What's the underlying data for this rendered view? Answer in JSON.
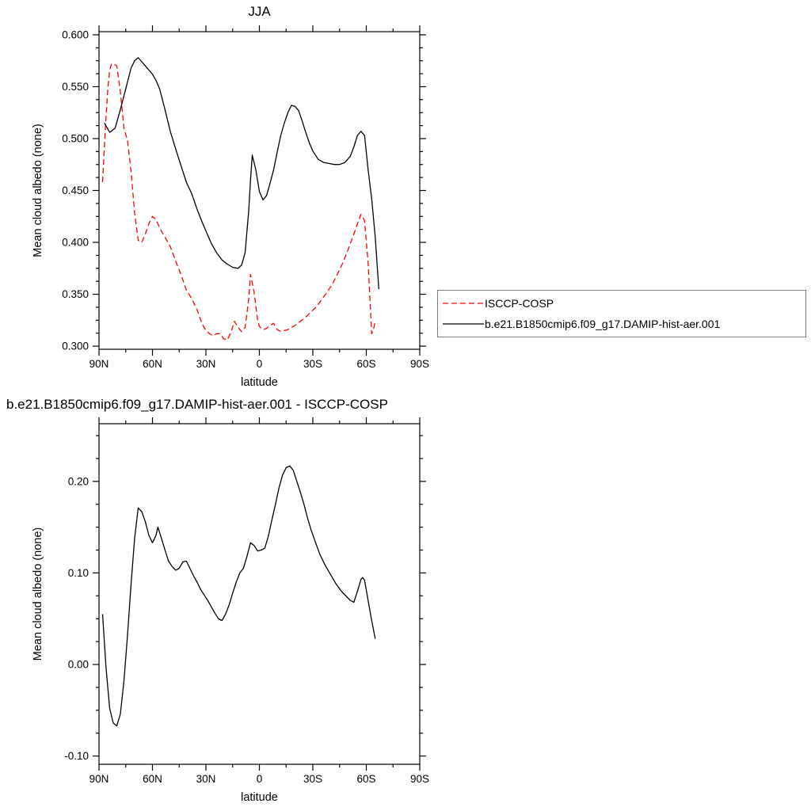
{
  "chart_data": [
    {
      "type": "line",
      "title": "JJA",
      "xlabel": "latitude",
      "ylabel": "Mean cloud albedo (none)",
      "xlim": [
        90,
        -90
      ],
      "ylim": [
        0.297,
        0.603
      ],
      "grid": false,
      "legend_position": "outside-right-bottom",
      "xticks": [
        {
          "v": 90,
          "label": "90N"
        },
        {
          "v": 60,
          "label": "60N"
        },
        {
          "v": 30,
          "label": "30N"
        },
        {
          "v": 0,
          "label": "0"
        },
        {
          "v": -30,
          "label": "30S"
        },
        {
          "v": -60,
          "label": "60S"
        },
        {
          "v": -90,
          "label": "90S"
        }
      ],
      "yticks": [
        {
          "v": 0.3,
          "label": "0.300"
        },
        {
          "v": 0.35,
          "label": "0.350"
        },
        {
          "v": 0.4,
          "label": "0.400"
        },
        {
          "v": 0.45,
          "label": "0.450"
        },
        {
          "v": 0.5,
          "label": "0.500"
        },
        {
          "v": 0.55,
          "label": "0.550"
        },
        {
          "v": 0.6,
          "label": "0.600"
        }
      ],
      "x_minor_step": 15,
      "y_minor_step": 0.0125,
      "series": [
        {
          "name": "ISCCP-COSP",
          "color": "#ff0000",
          "dash": "7,4",
          "x": [
            88,
            87,
            86,
            85,
            84,
            83,
            82,
            80,
            78,
            76,
            74,
            72,
            70,
            68,
            66,
            64,
            62,
            60,
            58,
            56,
            53,
            50,
            47,
            44,
            41,
            38,
            35,
            32,
            30,
            28,
            26,
            24,
            22,
            20,
            18,
            16,
            14,
            12,
            10,
            8,
            6,
            5,
            3,
            1,
            0,
            -2,
            -4,
            -6,
            -8,
            -10,
            -12,
            -14,
            -16,
            -18,
            -20,
            -23,
            -26,
            -29,
            -32,
            -35,
            -38,
            -41,
            -44,
            -47,
            -50,
            -53,
            -55,
            -57,
            -59,
            -61,
            -63,
            -64,
            -65
          ],
          "y": [
            0.458,
            0.492,
            0.522,
            0.55,
            0.566,
            0.572,
            0.572,
            0.57,
            0.545,
            0.51,
            0.498,
            0.468,
            0.428,
            0.402,
            0.4,
            0.408,
            0.418,
            0.425,
            0.422,
            0.414,
            0.405,
            0.396,
            0.382,
            0.369,
            0.354,
            0.346,
            0.335,
            0.321,
            0.315,
            0.312,
            0.31,
            0.312,
            0.312,
            0.307,
            0.306,
            0.313,
            0.324,
            0.318,
            0.314,
            0.318,
            0.345,
            0.369,
            0.352,
            0.325,
            0.319,
            0.316,
            0.317,
            0.32,
            0.322,
            0.316,
            0.314,
            0.315,
            0.316,
            0.318,
            0.32,
            0.324,
            0.328,
            0.333,
            0.338,
            0.345,
            0.352,
            0.36,
            0.37,
            0.381,
            0.394,
            0.408,
            0.418,
            0.427,
            0.421,
            0.38,
            0.312,
            0.316,
            0.324
          ]
        },
        {
          "name": "b.e21.B1850cmip6.f09_g17.DAMIP-hist-aer.001",
          "color": "#000000",
          "dash": "",
          "x": [
            87,
            84,
            81,
            78,
            75,
            72,
            70,
            68,
            66,
            64,
            62,
            60,
            58,
            56,
            53,
            50,
            47,
            44,
            41,
            38,
            35,
            32,
            30,
            27,
            24,
            21,
            18,
            15,
            12,
            10,
            8,
            6,
            5,
            4,
            2,
            0,
            -2,
            -4,
            -6,
            -8,
            -10,
            -12,
            -14,
            -16,
            -18,
            -20,
            -22,
            -24,
            -26,
            -28,
            -30,
            -33,
            -36,
            -39,
            -42,
            -45,
            -48,
            -51,
            -53,
            -55,
            -57,
            -59,
            -61,
            -63,
            -65,
            -67
          ],
          "y": [
            0.515,
            0.506,
            0.51,
            0.528,
            0.548,
            0.568,
            0.575,
            0.578,
            0.574,
            0.57,
            0.566,
            0.562,
            0.556,
            0.548,
            0.528,
            0.507,
            0.49,
            0.474,
            0.458,
            0.447,
            0.432,
            0.419,
            0.411,
            0.399,
            0.39,
            0.383,
            0.379,
            0.376,
            0.375,
            0.378,
            0.39,
            0.43,
            0.46,
            0.484,
            0.47,
            0.449,
            0.441,
            0.445,
            0.457,
            0.47,
            0.487,
            0.503,
            0.515,
            0.525,
            0.532,
            0.531,
            0.527,
            0.517,
            0.506,
            0.496,
            0.488,
            0.48,
            0.477,
            0.476,
            0.475,
            0.475,
            0.477,
            0.483,
            0.492,
            0.503,
            0.507,
            0.503,
            0.47,
            0.442,
            0.405,
            0.355
          ]
        }
      ]
    },
    {
      "type": "line",
      "title": "b.e21.B1850cmip6.f09_g17.DAMIP-hist-aer.001 - ISCCP-COSP",
      "xlabel": "latitude",
      "ylabel": "Mean cloud albedo (none)",
      "xlim": [
        90,
        -90
      ],
      "ylim": [
        -0.109,
        0.263
      ],
      "grid": false,
      "xticks": [
        {
          "v": 90,
          "label": "90N"
        },
        {
          "v": 60,
          "label": "60N"
        },
        {
          "v": 30,
          "label": "30N"
        },
        {
          "v": 0,
          "label": "0"
        },
        {
          "v": -30,
          "label": "30S"
        },
        {
          "v": -60,
          "label": "60S"
        },
        {
          "v": -90,
          "label": "90S"
        }
      ],
      "yticks": [
        {
          "v": -0.1,
          "label": "-0.10"
        },
        {
          "v": 0.0,
          "label": "0.00"
        },
        {
          "v": 0.1,
          "label": "0.10"
        },
        {
          "v": 0.2,
          "label": "0.20"
        }
      ],
      "x_minor_step": 15,
      "y_minor_step": 0.025,
      "series": [
        {
          "name": "",
          "color": "#000000",
          "dash": "",
          "x": [
            88,
            86,
            84,
            82,
            80,
            78,
            76,
            74,
            72,
            70,
            68,
            66,
            64,
            62,
            60,
            58,
            57,
            55,
            53,
            51,
            49,
            47,
            45,
            43,
            41,
            39,
            37,
            35,
            33,
            31,
            29,
            27,
            25,
            23,
            21,
            19,
            17,
            15,
            13,
            11,
            9,
            7,
            5,
            3,
            1,
            -1,
            -3,
            -5,
            -7,
            -9,
            -11,
            -13,
            -15,
            -17,
            -19,
            -21,
            -23,
            -25,
            -27,
            -29,
            -31,
            -34,
            -37,
            -40,
            -43,
            -46,
            -49,
            -51,
            -53,
            -55,
            -57,
            -58,
            -59,
            -61,
            -63,
            -65
          ],
          "y": [
            0.055,
            -0.005,
            -0.048,
            -0.064,
            -0.067,
            -0.054,
            -0.018,
            0.032,
            0.088,
            0.138,
            0.171,
            0.167,
            0.156,
            0.141,
            0.133,
            0.141,
            0.15,
            0.138,
            0.125,
            0.113,
            0.107,
            0.103,
            0.105,
            0.112,
            0.113,
            0.105,
            0.097,
            0.09,
            0.082,
            0.076,
            0.07,
            0.063,
            0.056,
            0.05,
            0.048,
            0.055,
            0.065,
            0.078,
            0.09,
            0.1,
            0.105,
            0.118,
            0.133,
            0.13,
            0.124,
            0.125,
            0.127,
            0.14,
            0.158,
            0.175,
            0.193,
            0.207,
            0.215,
            0.217,
            0.212,
            0.2,
            0.188,
            0.175,
            0.16,
            0.147,
            0.136,
            0.12,
            0.108,
            0.098,
            0.088,
            0.08,
            0.074,
            0.07,
            0.068,
            0.08,
            0.093,
            0.095,
            0.092,
            0.07,
            0.048,
            0.028
          ]
        }
      ]
    }
  ],
  "legend": {
    "entries": [
      "ISCCP-COSP",
      "b.e21.B1850cmip6.f09_g17.DAMIP-hist-aer.001"
    ]
  }
}
